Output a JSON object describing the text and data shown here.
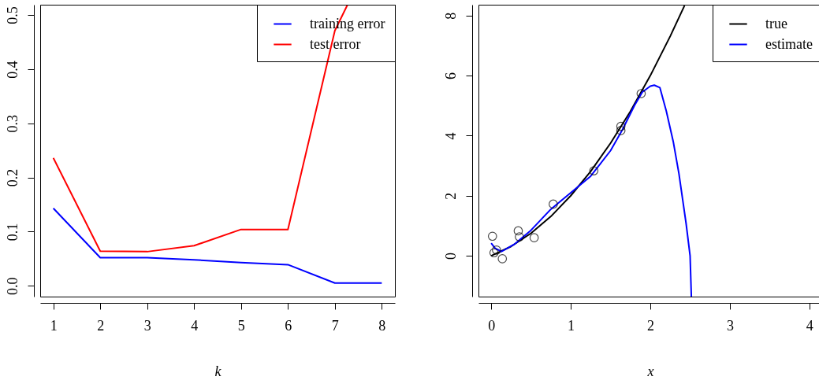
{
  "chart_data": [
    {
      "type": "line",
      "xlabel": "k",
      "x": [
        1,
        2,
        3,
        4,
        5,
        6,
        7,
        8
      ],
      "xlim": [
        0.72,
        8.28
      ],
      "xticks": [
        1,
        2,
        3,
        4,
        5,
        6,
        7,
        8
      ],
      "ylim": [
        -0.02,
        0.519
      ],
      "yticks": [
        {
          "value": 0,
          "label": "0.0"
        },
        {
          "value": 0.1,
          "label": "0.1"
        },
        {
          "value": 0.2,
          "label": "0.2"
        },
        {
          "value": 0.3,
          "label": "0.3"
        },
        {
          "value": 0.4,
          "label": "0.4"
        },
        {
          "value": 0.5,
          "label": "0.5"
        }
      ],
      "legend": "top right",
      "grid": false,
      "series": [
        {
          "name": "training error",
          "color": "#0000ff",
          "values": [
            0.143,
            0.052,
            0.052,
            0.048,
            0.043,
            0.039,
            0.005,
            0.005
          ]
        },
        {
          "name": "test error",
          "color": "#ff0000",
          "x": [
            1,
            2,
            3,
            4,
            5,
            6,
            7,
            7.27
          ],
          "values": [
            0.236,
            0.064,
            0.063,
            0.074,
            0.104,
            0.104,
            0.471,
            0.519
          ]
        }
      ]
    },
    {
      "type": "line",
      "xlabel": "x",
      "xlim": [
        -0.16,
        4.16
      ],
      "xticks": [
        0,
        1,
        2,
        3,
        4
      ],
      "ylim": [
        -1.36,
        8.36
      ],
      "yticks": [
        0,
        2,
        4,
        6,
        8
      ],
      "legend": "top right",
      "grid": false,
      "series": [
        {
          "name": "true",
          "color": "#000000",
          "x": [
            0,
            0.25,
            0.5,
            0.75,
            1,
            1.25,
            1.5,
            1.75,
            2,
            2.25,
            2.43
          ],
          "values": [
            0,
            0.31,
            0.75,
            1.31,
            2,
            2.81,
            3.75,
            4.81,
            6,
            7.31,
            8.33
          ]
        },
        {
          "name": "estimate",
          "color": "#0000ff",
          "x": [
            0,
            0.05,
            0.13,
            0.3,
            0.5,
            0.75,
            1,
            1.25,
            1.5,
            1.65,
            1.8,
            1.9,
            2,
            2.05,
            2.12,
            2.2,
            2.29,
            2.36,
            2.45,
            2.5,
            2.516
          ],
          "values": [
            0.42,
            0.25,
            0.14,
            0.4,
            0.85,
            1.55,
            2.1,
            2.65,
            3.5,
            4.2,
            5,
            5.45,
            5.65,
            5.68,
            5.6,
            4.83,
            3.78,
            2.73,
            1.07,
            0,
            -1.36
          ]
        },
        {
          "type": "scatter",
          "marker": "circle",
          "color": "#000000",
          "x": [
            0.016,
            0.035,
            0.067,
            0.14,
            0.34,
            0.355,
            0.54,
            0.78,
            1.29,
            1.63,
            1.63,
            1.885
          ],
          "values": [
            0.65,
            0.1,
            0.19,
            -0.1,
            0.83,
            0.63,
            0.6,
            1.72,
            2.83,
            4.31,
            4.17,
            5.4
          ]
        }
      ]
    }
  ]
}
